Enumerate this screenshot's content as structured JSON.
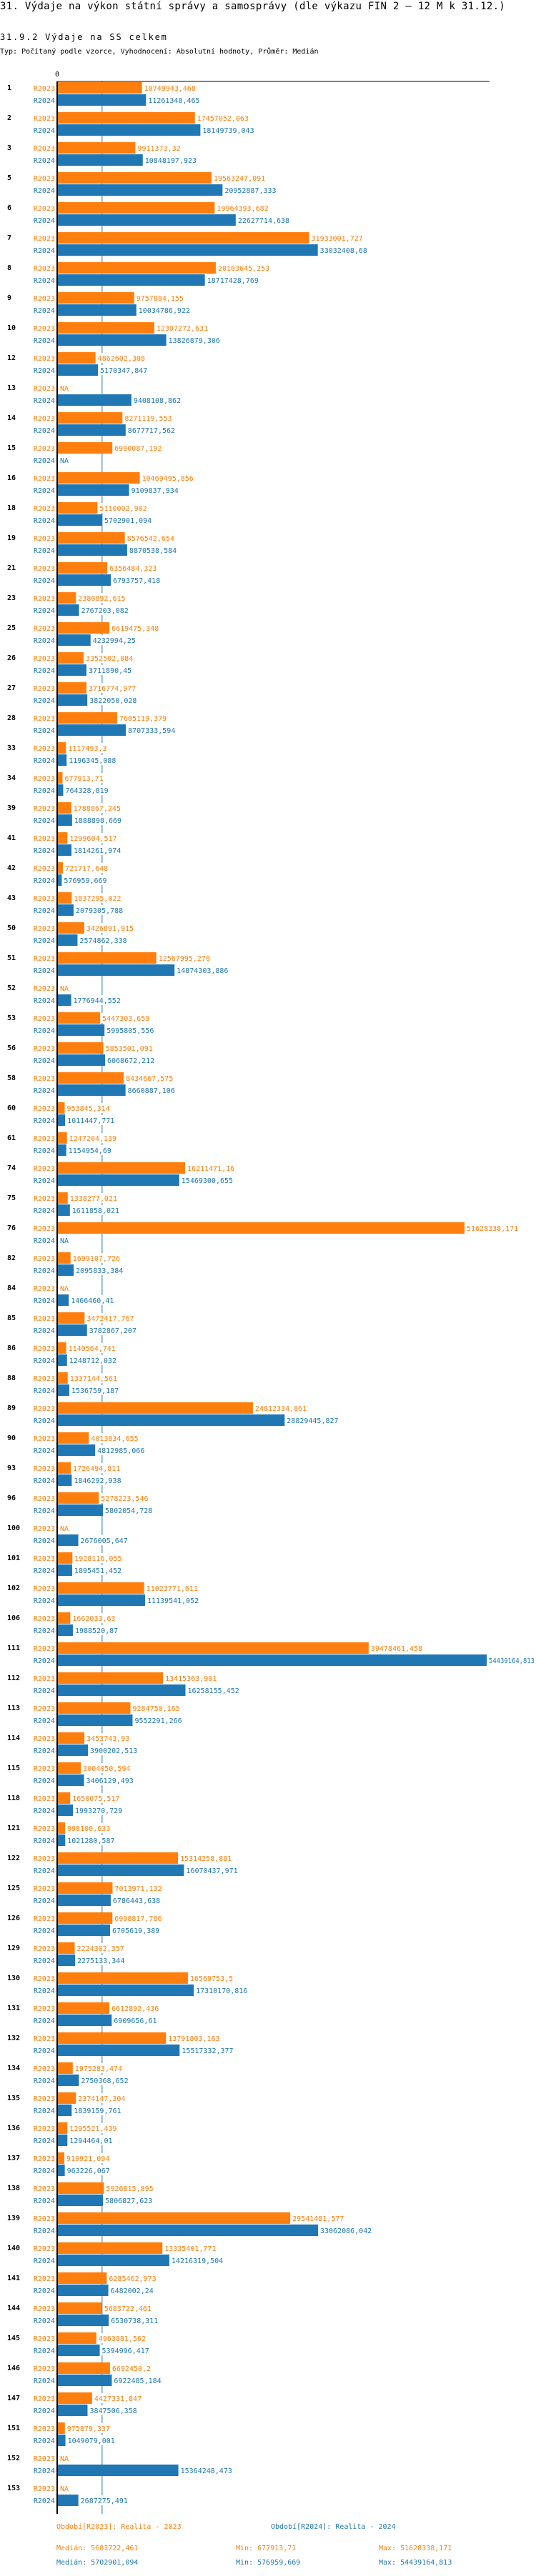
{
  "header": {
    "title": "31. Výdaje na výkon státní správy a samosprávy (dle výkazu FIN 2 – 12 M k 31.12.)",
    "subtitle": "31.9.2 Výdaje na SS celkem",
    "description": "Typ: Počítaný podle vzorce, Vyhodnocení: Absolutní hodnoty, Průměr: Medián"
  },
  "chart_data": {
    "type": "bar",
    "orientation": "horizontal",
    "axis_zero_label": "0",
    "xlim": [
      0,
      54800000
    ],
    "grid": false,
    "highlight_category": "113",
    "highlight_color": "#ff0000",
    "na_label": "NA",
    "median_line_value": 5693311.78,
    "categories": [
      "1",
      "2",
      "3",
      "5",
      "6",
      "7",
      "8",
      "9",
      "10",
      "12",
      "13",
      "14",
      "15",
      "16",
      "18",
      "19",
      "21",
      "23",
      "25",
      "26",
      "27",
      "28",
      "33",
      "34",
      "39",
      "41",
      "42",
      "43",
      "50",
      "51",
      "52",
      "53",
      "56",
      "58",
      "60",
      "61",
      "74",
      "75",
      "76",
      "82",
      "84",
      "85",
      "86",
      "88",
      "89",
      "90",
      "93",
      "96",
      "100",
      "101",
      "102",
      "106",
      "111",
      "112",
      "113",
      "114",
      "115",
      "118",
      "121",
      "122",
      "125",
      "126",
      "129",
      "130",
      "131",
      "132",
      "134",
      "135",
      "136",
      "137",
      "138",
      "139",
      "140",
      "141",
      "144",
      "145",
      "146",
      "147",
      "151",
      "152",
      "153"
    ],
    "series": [
      {
        "name": "R2023",
        "color": "#ff7f0e",
        "values": [
          10749943.468,
          17457052.063,
          9911373.32,
          19563247.091,
          19964393.682,
          31933001.727,
          20103645.253,
          9757884.155,
          12307272.631,
          4862602.308,
          null,
          8271119.553,
          6990087.192,
          10469495.856,
          5110002.902,
          8576542.654,
          6356484.323,
          2380892.615,
          6619475.348,
          3352502.084,
          3716774.977,
          7605119.379,
          1117493.3,
          677913.71,
          1788867.245,
          1299604.517,
          721717.648,
          1837295.022,
          3426891.915,
          12567995.278,
          null,
          5447303.659,
          5853501.091,
          8434667.575,
          953845.314,
          1247204.139,
          16211471.16,
          1338277.021,
          51628338.171,
          1699107.726,
          null,
          3472417.767,
          1140564.741,
          1337144.561,
          24812334.861,
          4013834.655,
          1726494.811,
          5278223.546,
          null,
          1928116.055,
          11023771.611,
          1662033.63,
          39478461.458,
          13415363.901,
          9284750.165,
          3453743.93,
          3004050.594,
          1650075.517,
          998100.633,
          15314258.881,
          7013971.132,
          6998817.786,
          2224302.357,
          16569753.5,
          6612892.436,
          13791803.163,
          1975283.474,
          2374147.304,
          1295521.439,
          910921.094,
          5926815.895,
          29541481.577,
          13335401.771,
          6285462.973,
          5683722.461,
          4963881.562,
          6692450.2,
          4427331.847,
          975879.337,
          null,
          null
        ]
      },
      {
        "name": "R2024",
        "color": "#1f77b4",
        "values": [
          11261348.465,
          18149739.043,
          10848197.923,
          20952887.333,
          22627714.638,
          33032408.68,
          18717428.769,
          10034786.922,
          13826879.306,
          5170347.847,
          9408108.862,
          8677717.562,
          null,
          9109837.934,
          5702901.094,
          8870538.584,
          6793757.418,
          2767203.082,
          4232994.25,
          3711890.45,
          3822050.028,
          8707333.594,
          1196345.088,
          764328.819,
          1888898.669,
          1814261.974,
          576959.669,
          2079305.788,
          2574862.338,
          14874303.886,
          1776944.552,
          5995805.556,
          6068672.212,
          8660887.106,
          1011447.771,
          1154954.69,
          15469300.655,
          1611858.021,
          null,
          2095833.384,
          1466460.41,
          3782867.207,
          1248712.032,
          1536759.187,
          28829445.827,
          4812985.066,
          1846292.938,
          5802054.728,
          2676005.647,
          1895451.452,
          11139541.052,
          1988520.87,
          54439164.813,
          16258155.452,
          9552291.266,
          3900202.513,
          3406129.493,
          1993270.729,
          1021280.587,
          16070437.971,
          6786443.638,
          6705619.389,
          2275133.344,
          17310170.816,
          6909656.61,
          15517332.377,
          2750368.652,
          1839159.761,
          1294464.01,
          963226.067,
          5806827.623,
          33062086.042,
          14216319.504,
          6482002.24,
          6530738.311,
          5394996.417,
          6922485.184,
          3847506.358,
          1049079.001,
          15364248.473,
          2687275.491
        ]
      }
    ]
  },
  "legend": {
    "r2023": "Období[R2023]: Realita - 2023",
    "r2024": "Období[R2024]: Realita - 2024"
  },
  "stats": {
    "r2023": {
      "median": "Medián: 5683722,461",
      "min": "Min: 677913,71",
      "max": "Max: 51628338,171"
    },
    "r2024": {
      "median": "Medián: 5702901,094",
      "min": "Min: 576959,669",
      "max": "Max: 54439164,813"
    }
  }
}
